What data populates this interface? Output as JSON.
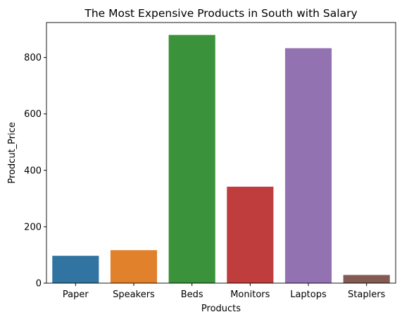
{
  "chart_data": {
    "type": "bar",
    "title": "The Most Expensive Products in South with Salary",
    "xlabel": "Products",
    "ylabel": "Prodcut_Price",
    "categories": [
      "Paper",
      "Speakers",
      "Beds",
      "Monitors",
      "Laptops",
      "Staplers"
    ],
    "values": [
      97,
      117,
      880,
      342,
      833,
      29
    ],
    "colors": [
      "#3274a1",
      "#e1812c",
      "#3a923a",
      "#c03d3e",
      "#9372b2",
      "#845b53"
    ],
    "ylim": [
      0,
      924
    ],
    "yticks": [
      0,
      200,
      400,
      600,
      800
    ],
    "grid": false,
    "legend": "none"
  }
}
